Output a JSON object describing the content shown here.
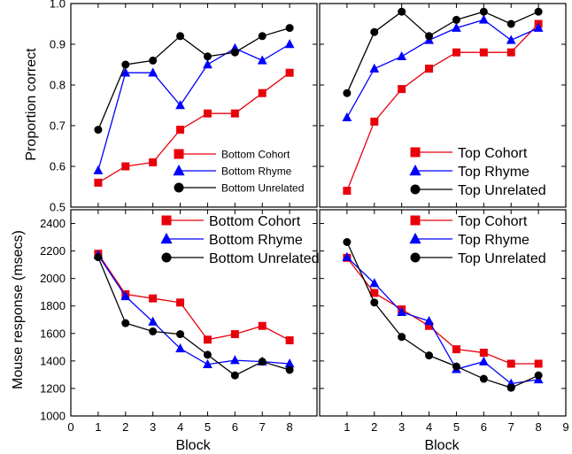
{
  "figure": {
    "ylabel_top": "Proportion correct",
    "ylabel_bottom": "Mouse response (msecs)",
    "xlabel": "Block"
  },
  "colors": {
    "cohort": "#e8000b",
    "rhyme": "#0000ff",
    "unrelated": "#000000"
  },
  "chart_data": [
    {
      "type": "line",
      "panel": "top-left",
      "x": [
        1,
        2,
        3,
        4,
        5,
        6,
        7,
        8
      ],
      "xlim": [
        0,
        9
      ],
      "ylim": [
        0.5,
        1.0
      ],
      "yticks": [
        "0.5",
        "0.6",
        "0.7",
        "0.8",
        "0.9",
        "1.0"
      ],
      "xticks": [],
      "ylabel": "Proportion correct",
      "legend_position": "lower-right",
      "legend_size": "small",
      "series": [
        {
          "name": "Bottom Cohort",
          "marker": "square",
          "color": "#e8000b",
          "values": [
            0.56,
            0.6,
            0.61,
            0.69,
            0.73,
            0.73,
            0.78,
            0.83
          ]
        },
        {
          "name": "Bottom Rhyme",
          "marker": "triangle",
          "color": "#0000ff",
          "values": [
            0.59,
            0.83,
            0.83,
            0.75,
            0.85,
            0.89,
            0.86,
            0.9
          ]
        },
        {
          "name": "Bottom Unrelated",
          "marker": "circle",
          "color": "#000000",
          "values": [
            0.69,
            0.85,
            0.86,
            0.92,
            0.87,
            0.88,
            0.92,
            0.94
          ]
        }
      ]
    },
    {
      "type": "line",
      "panel": "top-right",
      "x": [
        1,
        2,
        3,
        4,
        5,
        6,
        7,
        8
      ],
      "xlim": [
        0,
        9
      ],
      "ylim": [
        0.5,
        1.0
      ],
      "yticks": [],
      "xticks": [],
      "legend_position": "lower-right",
      "legend_size": "large",
      "series": [
        {
          "name": "Top Cohort",
          "marker": "square",
          "color": "#e8000b",
          "values": [
            0.54,
            0.71,
            0.79,
            0.84,
            0.88,
            0.88,
            0.88,
            0.95
          ]
        },
        {
          "name": "Top Rhyme",
          "marker": "triangle",
          "color": "#0000ff",
          "values": [
            0.72,
            0.84,
            0.87,
            0.91,
            0.94,
            0.96,
            0.91,
            0.94
          ]
        },
        {
          "name": "Top Unrelated",
          "marker": "circle",
          "color": "#000000",
          "values": [
            0.78,
            0.93,
            0.98,
            0.92,
            0.96,
            0.98,
            0.95,
            0.98
          ]
        }
      ]
    },
    {
      "type": "line",
      "panel": "bottom-left",
      "x": [
        1,
        2,
        3,
        4,
        5,
        6,
        7,
        8
      ],
      "xlim": [
        0,
        9
      ],
      "ylim": [
        1000,
        2500
      ],
      "yticks": [
        "1000",
        "1200",
        "1400",
        "1600",
        "1800",
        "2000",
        "2200",
        "2400"
      ],
      "xticks": [
        "0",
        "1",
        "2",
        "3",
        "4",
        "5",
        "6",
        "7",
        "8"
      ],
      "xlabel": "Block",
      "ylabel": "Mouse response (msecs)",
      "legend_position": "upper-right",
      "legend_size": "large",
      "series": [
        {
          "name": "Bottom Cohort",
          "marker": "square",
          "color": "#e8000b",
          "values": [
            2180,
            1885,
            1855,
            1825,
            1555,
            1595,
            1655,
            1550
          ]
        },
        {
          "name": "Bottom Rhyme",
          "marker": "triangle",
          "color": "#0000ff",
          "values": [
            2170,
            1870,
            1685,
            1490,
            1375,
            1405,
            1395,
            1380
          ]
        },
        {
          "name": "Bottom Unrelated",
          "marker": "circle",
          "color": "#000000",
          "values": [
            2155,
            1675,
            1615,
            1595,
            1445,
            1295,
            1395,
            1335
          ]
        }
      ]
    },
    {
      "type": "line",
      "panel": "bottom-right",
      "x": [
        1,
        2,
        3,
        4,
        5,
        6,
        7,
        8
      ],
      "xlim": [
        0,
        9
      ],
      "ylim": [
        1000,
        2500
      ],
      "yticks": [],
      "xticks": [
        "1",
        "2",
        "3",
        "4",
        "5",
        "6",
        "7",
        "8",
        "9"
      ],
      "xlabel": "Block",
      "legend_position": "upper-right",
      "legend_size": "large",
      "series": [
        {
          "name": "Top Cohort",
          "marker": "square",
          "color": "#e8000b",
          "values": [
            2150,
            1895,
            1775,
            1655,
            1485,
            1460,
            1380,
            1380
          ]
        },
        {
          "name": "Top Rhyme",
          "marker": "triangle",
          "color": "#0000ff",
          "values": [
            2155,
            1965,
            1755,
            1690,
            1340,
            1395,
            1235,
            1265
          ]
        },
        {
          "name": "Top Unrelated",
          "marker": "circle",
          "color": "#000000",
          "values": [
            2265,
            1825,
            1575,
            1440,
            1360,
            1270,
            1205,
            1295
          ]
        }
      ]
    }
  ]
}
